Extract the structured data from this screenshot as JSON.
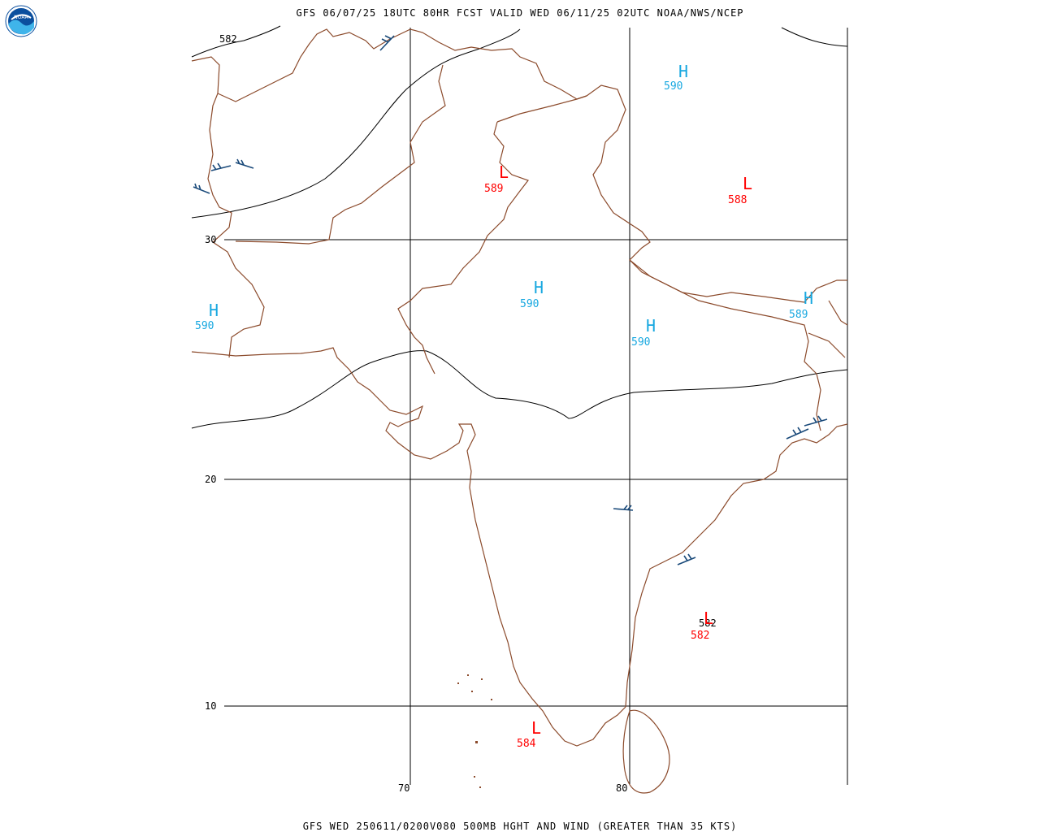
{
  "header": {
    "title": "GFS 06/07/25 18UTC 80HR FCST VALID WED 06/11/25 02UTC NOAA/NWS/NCEP"
  },
  "footer": {
    "title": "GFS WED 250611/0200V080 500MB HGHT AND WIND (GREATER THAN 35 KTS)"
  },
  "logo": {
    "text": "NOAA"
  },
  "grid": {
    "lat_labels": [
      "30",
      "20",
      "10"
    ],
    "lon_labels": [
      "70",
      "80"
    ]
  },
  "contour_labels": [
    "582",
    "582"
  ],
  "centers": [
    {
      "type": "H",
      "value": "590"
    },
    {
      "type": "L",
      "value": "589"
    },
    {
      "type": "L",
      "value": "588"
    },
    {
      "type": "H",
      "value": "590"
    },
    {
      "type": "H",
      "value": "590"
    },
    {
      "type": "H",
      "value": "590"
    },
    {
      "type": "H",
      "value": "589"
    },
    {
      "type": "L",
      "value": "582"
    },
    {
      "type": "L",
      "value": "584"
    }
  ],
  "colors": {
    "high": "#18a8e0",
    "low": "#ff0000",
    "border": "#8b4a2b",
    "barb": "#1a4a7a"
  }
}
